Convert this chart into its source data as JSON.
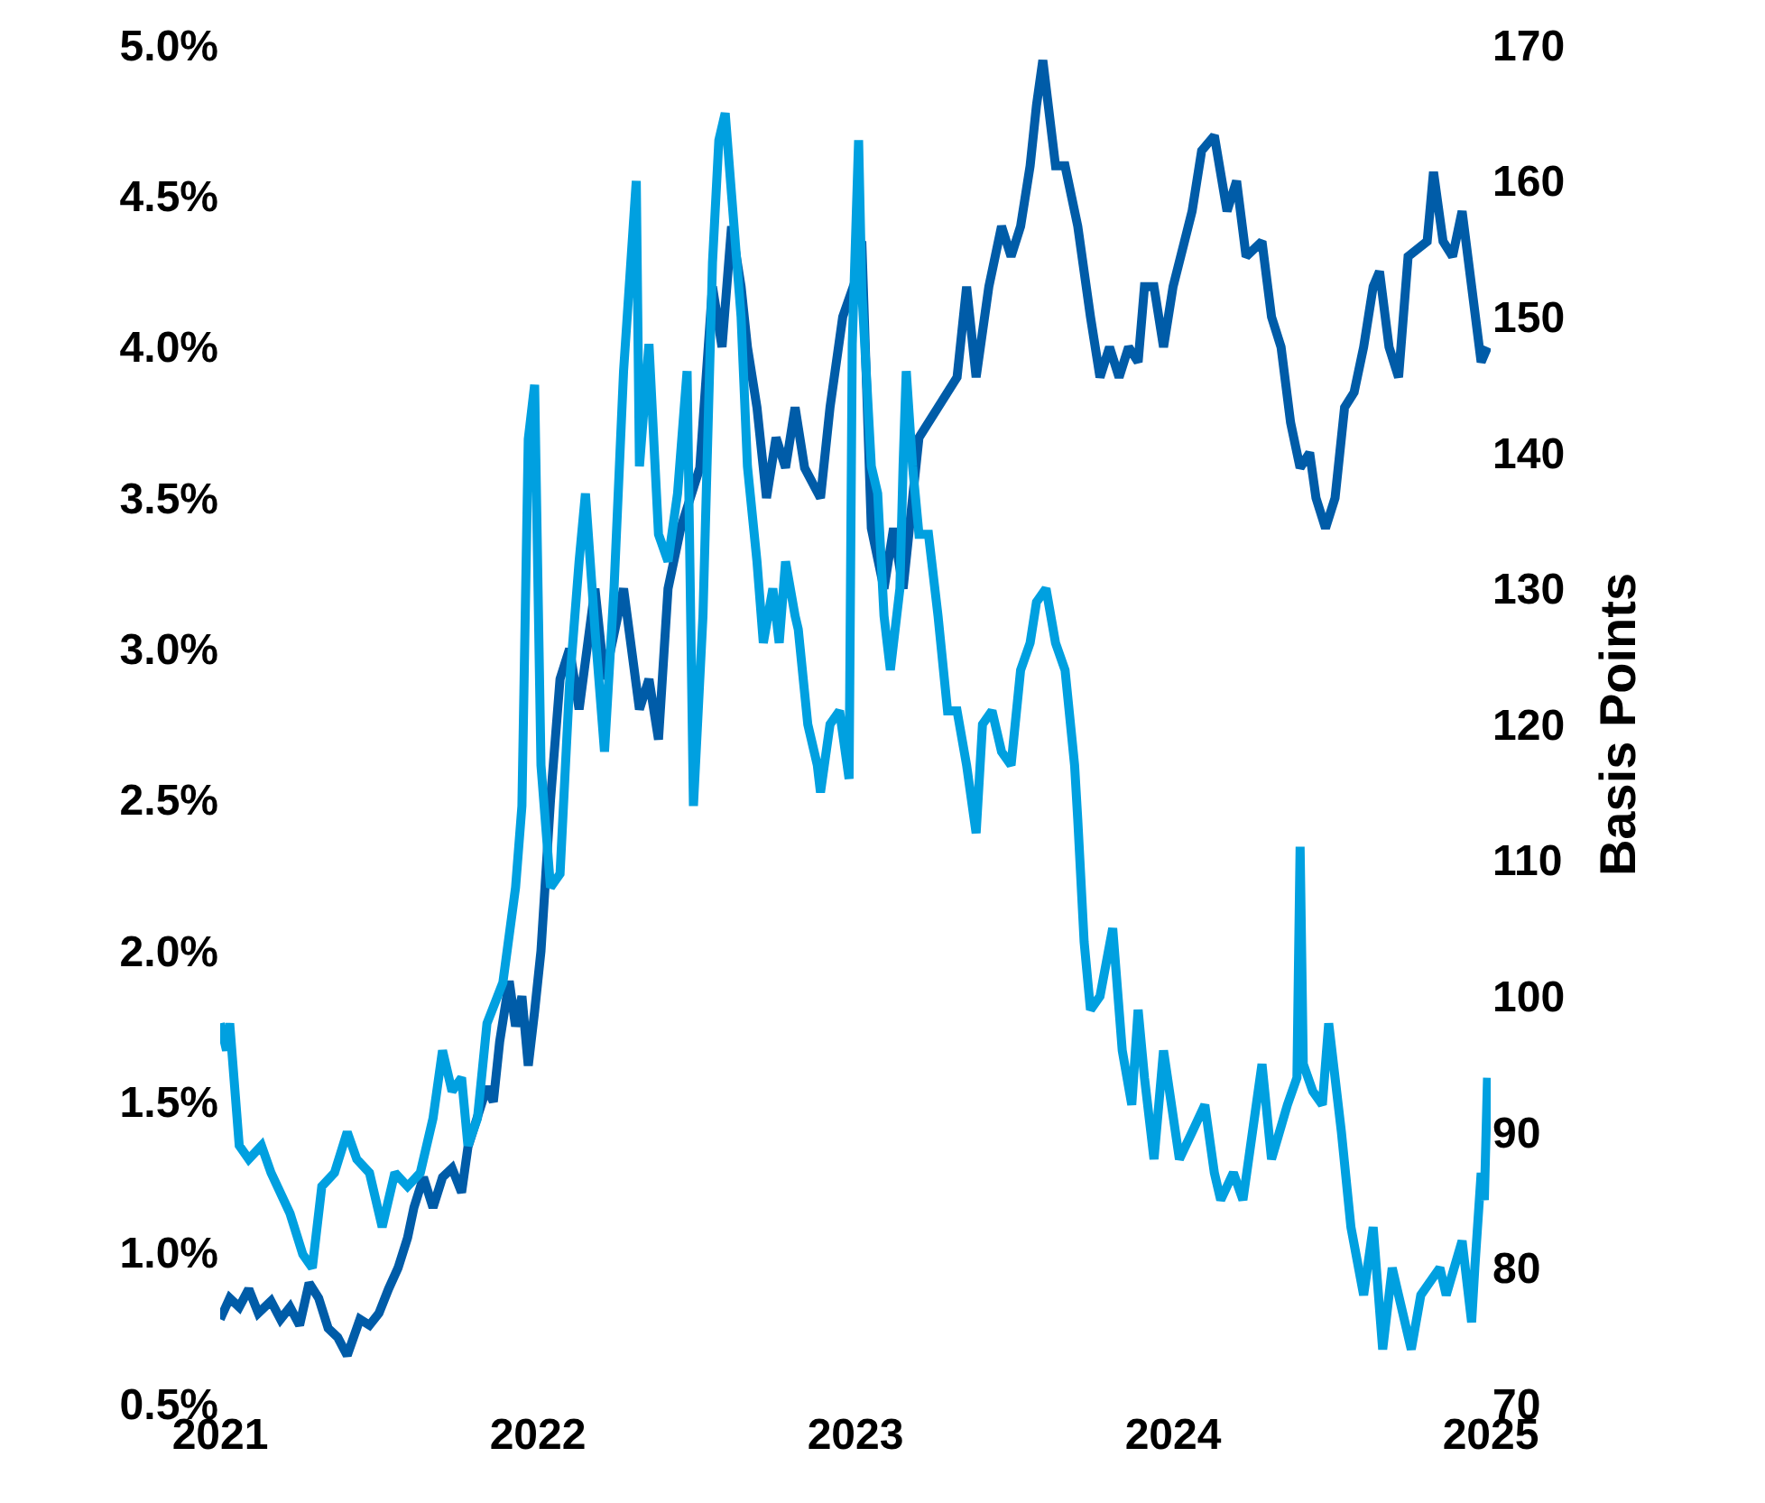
{
  "chart_data": {
    "type": "line",
    "y2label": "Basis Points",
    "xlim": [
      2021,
      2025
    ],
    "xticks": [
      2021,
      2022,
      2023,
      2024,
      2025
    ],
    "ylim": [
      0.5,
      5.0
    ],
    "yticks": [
      {
        "value": 0.5,
        "label": "0.5%"
      },
      {
        "value": 1.0,
        "label": "1.0%"
      },
      {
        "value": 1.5,
        "label": "1.5%"
      },
      {
        "value": 2.0,
        "label": "2.0%"
      },
      {
        "value": 2.5,
        "label": "2.5%"
      },
      {
        "value": 3.0,
        "label": "3.0%"
      },
      {
        "value": 3.5,
        "label": "3.5%"
      },
      {
        "value": 4.0,
        "label": "4.0%"
      },
      {
        "value": 4.5,
        "label": "4.5%"
      },
      {
        "value": 5.0,
        "label": "5.0%"
      }
    ],
    "y2lim": [
      70,
      170
    ],
    "y2ticks": [
      70,
      80,
      90,
      100,
      110,
      120,
      130,
      140,
      150,
      160,
      170
    ],
    "marker": "none",
    "line_style": "solid",
    "series": [
      {
        "color": "#005ca8",
        "x": [
          2021.0,
          2021.03,
          2021.06,
          2021.09,
          2021.12,
          2021.16,
          2021.19,
          2021.22,
          2021.25,
          2021.28,
          2021.31,
          2021.34,
          2021.37,
          2021.4,
          2021.42,
          2021.44,
          2021.47,
          2021.5,
          2021.53,
          2021.56,
          2021.59,
          2021.61,
          2021.64,
          2021.67,
          2021.7,
          2021.73,
          2021.76,
          2021.78,
          2021.81,
          2021.84,
          2021.86,
          2021.88,
          2021.91,
          2021.93,
          2021.95,
          2021.97,
          2021.99,
          2022.01,
          2022.04,
          2022.07,
          2022.1,
          2022.13,
          2022.18,
          2022.21,
          2022.27,
          2022.32,
          2022.35,
          2022.38,
          2022.41,
          2022.45,
          2022.51,
          2022.55,
          2022.58,
          2022.61,
          2022.64,
          2022.66,
          2022.69,
          2022.72,
          2022.75,
          2022.78,
          2022.81,
          2022.84,
          2022.89,
          2022.92,
          2022.96,
          2023.01,
          2023.02,
          2023.05,
          2023.09,
          2023.12,
          2023.15,
          2023.18,
          2023.2,
          2023.26,
          2023.32,
          2023.35,
          2023.38,
          2023.42,
          2023.46,
          2023.49,
          2023.52,
          2023.55,
          2023.57,
          2023.59,
          2023.63,
          2023.66,
          2023.7,
          2023.74,
          2023.77,
          2023.8,
          2023.83,
          2023.86,
          2023.89,
          2023.91,
          2023.94,
          2023.97,
          2024.0,
          2024.06,
          2024.09,
          2024.13,
          2024.17,
          2024.2,
          2024.23,
          2024.28,
          2024.31,
          2024.34,
          2024.37,
          2024.4,
          2024.43,
          2024.45,
          2024.48,
          2024.51,
          2024.54,
          2024.57,
          2024.6,
          2024.63,
          2024.65,
          2024.68,
          2024.71,
          2024.74,
          2024.8,
          2024.82,
          2024.85,
          2024.88,
          2024.91,
          2024.94,
          2024.97,
          2024.99
        ],
        "values": [
          0.78,
          0.85,
          0.82,
          0.88,
          0.8,
          0.84,
          0.78,
          0.82,
          0.76,
          0.9,
          0.85,
          0.75,
          0.72,
          0.66,
          0.72,
          0.78,
          0.76,
          0.8,
          0.88,
          0.95,
          1.05,
          1.15,
          1.25,
          1.15,
          1.25,
          1.28,
          1.2,
          1.35,
          1.45,
          1.55,
          1.5,
          1.7,
          1.9,
          1.75,
          1.85,
          1.62,
          1.8,
          2.0,
          2.5,
          2.9,
          3.0,
          2.8,
          3.2,
          2.9,
          3.2,
          2.8,
          2.9,
          2.7,
          3.2,
          3.4,
          3.6,
          4.2,
          4.0,
          4.4,
          4.2,
          4.0,
          3.8,
          3.5,
          3.7,
          3.6,
          3.8,
          3.6,
          3.5,
          3.8,
          4.1,
          4.25,
          4.35,
          3.4,
          3.2,
          3.4,
          3.2,
          3.5,
          3.7,
          3.8,
          3.9,
          4.2,
          3.9,
          4.2,
          4.4,
          4.3,
          4.4,
          4.6,
          4.8,
          4.95,
          4.6,
          4.6,
          4.4,
          4.1,
          3.9,
          4.0,
          3.9,
          4.0,
          3.95,
          4.2,
          4.2,
          4.0,
          4.2,
          4.45,
          4.65,
          4.7,
          4.45,
          4.55,
          4.3,
          4.35,
          4.1,
          4.0,
          3.75,
          3.6,
          3.65,
          3.5,
          3.4,
          3.5,
          3.8,
          3.85,
          4.0,
          4.2,
          4.25,
          4.0,
          3.9,
          4.3,
          4.35,
          4.58,
          4.35,
          4.3,
          4.45,
          4.2,
          3.95,
          4.0
        ]
      },
      {
        "color": "#00a0e0",
        "axis": "y2",
        "x": [
          2021.0,
          2021.02,
          2021.03,
          2021.06,
          2021.09,
          2021.13,
          2021.16,
          2021.22,
          2021.26,
          2021.29,
          2021.32,
          2021.36,
          2021.4,
          2021.43,
          2021.47,
          2021.51,
          2021.55,
          2021.59,
          2021.63,
          2021.67,
          2021.7,
          2021.73,
          2021.76,
          2021.78,
          2021.81,
          2021.84,
          2021.89,
          2021.93,
          2021.95,
          2021.97,
          2021.99,
          2022.01,
          2022.04,
          2022.07,
          2022.1,
          2022.13,
          2022.15,
          2022.18,
          2022.21,
          2022.24,
          2022.27,
          2022.31,
          2022.32,
          2022.35,
          2022.38,
          2022.41,
          2022.44,
          2022.47,
          2022.49,
          2022.52,
          2022.55,
          2022.57,
          2022.59,
          2022.61,
          2022.64,
          2022.66,
          2022.69,
          2022.71,
          2022.74,
          2022.76,
          2022.78,
          2022.81,
          2022.82,
          2022.85,
          2022.88,
          2022.89,
          2022.92,
          2022.95,
          2022.98,
          2022.99,
          2023.01,
          2023.02,
          2023.05,
          2023.07,
          2023.09,
          2023.11,
          2023.14,
          2023.15,
          2023.16,
          2023.18,
          2023.2,
          2023.23,
          2023.26,
          2023.29,
          2023.32,
          2023.35,
          2023.38,
          2023.4,
          2023.43,
          2023.46,
          2023.49,
          2023.52,
          2023.55,
          2023.57,
          2023.6,
          2023.63,
          2023.66,
          2023.69,
          2023.7,
          2023.72,
          2023.74,
          2023.77,
          2023.81,
          2023.84,
          2023.87,
          2023.89,
          2023.91,
          2023.94,
          2023.97,
          2024.02,
          2024.06,
          2024.1,
          2024.13,
          2024.15,
          2024.19,
          2024.22,
          2024.25,
          2024.28,
          2024.31,
          2024.36,
          2024.39,
          2024.4,
          2024.41,
          2024.44,
          2024.47,
          2024.49,
          2024.53,
          2024.56,
          2024.6,
          2024.63,
          2024.66,
          2024.69,
          2024.71,
          2024.75,
          2024.78,
          2024.81,
          2024.84,
          2024.86,
          2024.91,
          2024.94,
          2024.95,
          2024.97,
          2024.98,
          2024.99
        ],
        "values": [
          98,
          96,
          98,
          89,
          88,
          89,
          87,
          84,
          81,
          80,
          86,
          87,
          90,
          88,
          87,
          83,
          87,
          86,
          87,
          91,
          96,
          93,
          94,
          89,
          91,
          98,
          101,
          108,
          114,
          141,
          145,
          117,
          108,
          109,
          123,
          132,
          137,
          127,
          118,
          130,
          146,
          160,
          139,
          148,
          134,
          132,
          137,
          146,
          114,
          128,
          154,
          163,
          165,
          159,
          150,
          139,
          132,
          126,
          130,
          126,
          132,
          128,
          127,
          120,
          117,
          115,
          120,
          121,
          116,
          148,
          163,
          152,
          139,
          137,
          128,
          124,
          130,
          139,
          146,
          139,
          134,
          134,
          128,
          121,
          121,
          117,
          112,
          120,
          121,
          118,
          117,
          124,
          126,
          129,
          130,
          126,
          124,
          117,
          113,
          104,
          99,
          100,
          105,
          96,
          92,
          99,
          94,
          88,
          96,
          88,
          90,
          92,
          87,
          85,
          87,
          85,
          90,
          95,
          88,
          92,
          94,
          111,
          95,
          93,
          92,
          98,
          90,
          83,
          78,
          83,
          74,
          80,
          78,
          74,
          78,
          79,
          80,
          78,
          82,
          76,
          80,
          87,
          85,
          94
        ]
      }
    ]
  }
}
